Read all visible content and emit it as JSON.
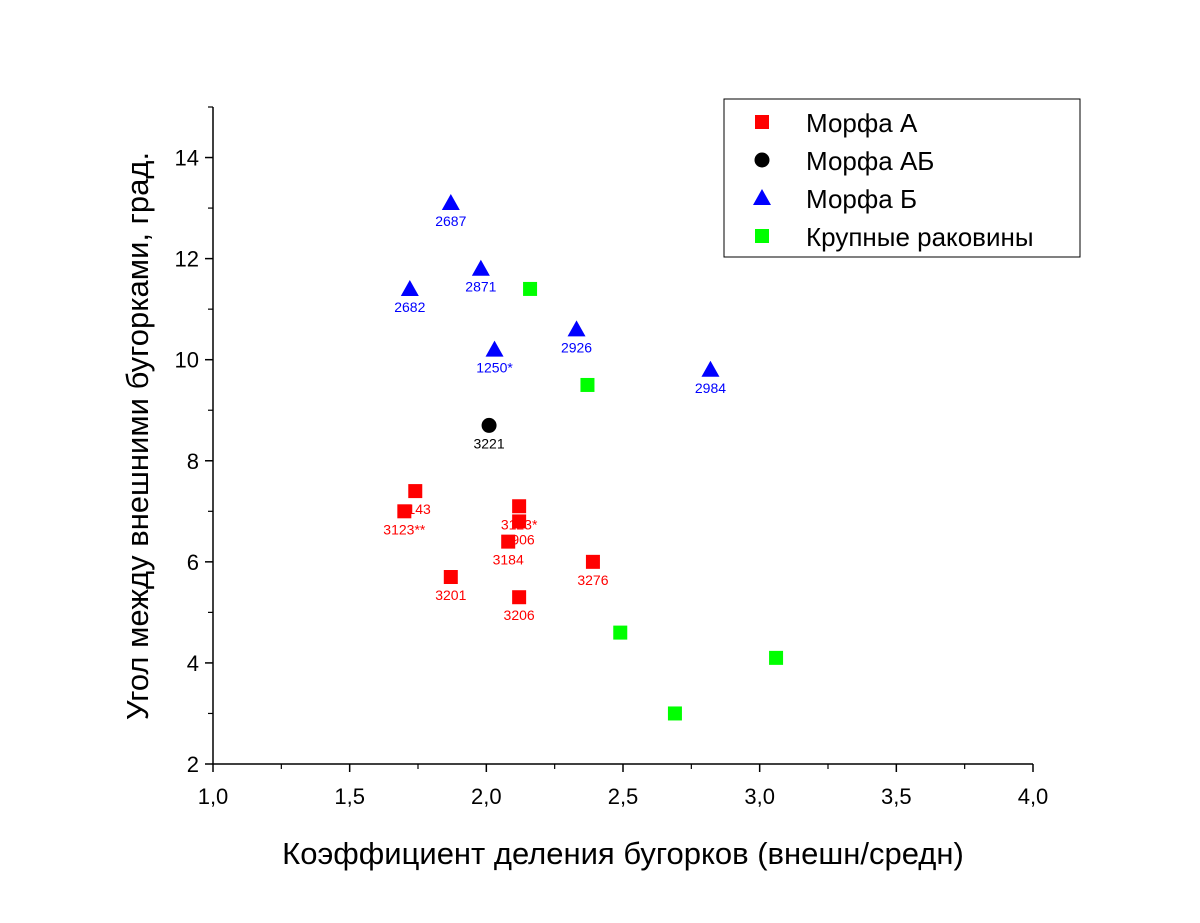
{
  "chart_data": {
    "type": "scatter",
    "xlabel": "Коэффициент деления бугорков (внешн/средн)",
    "ylabel": "Угол между внешними бугорками, град.",
    "xlim": [
      1.0,
      4.0
    ],
    "ylim": [
      2,
      15
    ],
    "xticks": [
      1.0,
      1.5,
      2.0,
      2.5,
      3.0,
      3.5,
      4.0
    ],
    "xtick_labels": [
      "1,0",
      "1,5",
      "2,0",
      "2,5",
      "3,0",
      "3,5",
      "4,0"
    ],
    "yticks": [
      2,
      4,
      6,
      8,
      10,
      12,
      14
    ],
    "ytick_labels": [
      "2",
      "4",
      "6",
      "8",
      "10",
      "12",
      "14"
    ],
    "grid": false,
    "legend_position": "top-right",
    "series": [
      {
        "name": "Морфа А",
        "color": "#ff0000",
        "marker": "square",
        "points": [
          {
            "x": 1.74,
            "y": 7.4,
            "label": "3143"
          },
          {
            "x": 1.7,
            "y": 7.0,
            "label": "3123**"
          },
          {
            "x": 2.12,
            "y": 7.1,
            "label": "3123*"
          },
          {
            "x": 2.12,
            "y": 6.8,
            "label": "2906"
          },
          {
            "x": 2.08,
            "y": 6.4,
            "label": "3184"
          },
          {
            "x": 1.87,
            "y": 5.7,
            "label": "3201"
          },
          {
            "x": 2.12,
            "y": 5.3,
            "label": "3206"
          },
          {
            "x": 2.39,
            "y": 6.0,
            "label": "3276"
          }
        ]
      },
      {
        "name": "Морфа АБ",
        "color": "#000000",
        "marker": "circle",
        "points": [
          {
            "x": 2.01,
            "y": 8.7,
            "label": "3221"
          }
        ]
      },
      {
        "name": "Морфа Б",
        "color": "#0000ff",
        "marker": "triangle",
        "points": [
          {
            "x": 1.87,
            "y": 13.1,
            "label": "2687"
          },
          {
            "x": 1.72,
            "y": 11.4,
            "label": "2682"
          },
          {
            "x": 1.98,
            "y": 11.8,
            "label": "2871"
          },
          {
            "x": 2.03,
            "y": 10.2,
            "label": "1250*"
          },
          {
            "x": 2.33,
            "y": 10.6,
            "label": "2926"
          },
          {
            "x": 2.82,
            "y": 9.8,
            "label": "2984"
          }
        ]
      },
      {
        "name": "Крупные раковины",
        "color": "#00ff00",
        "marker": "square",
        "points": [
          {
            "x": 2.16,
            "y": 11.4
          },
          {
            "x": 2.37,
            "y": 9.5
          },
          {
            "x": 2.49,
            "y": 4.6
          },
          {
            "x": 2.69,
            "y": 3.0
          },
          {
            "x": 3.06,
            "y": 4.1
          }
        ]
      }
    ]
  }
}
